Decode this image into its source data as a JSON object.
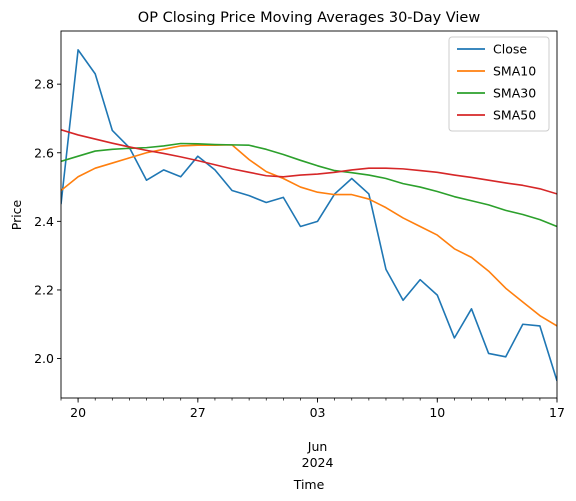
{
  "chart_data": {
    "type": "line",
    "title": "OP Closing Price Moving Averages 30-Day View",
    "xlabel": "Time",
    "ylabel": "Price",
    "ylim": [
      1.885,
      2.955
    ],
    "x_start": "2024-05-19",
    "x_end": "2024-06-17",
    "yticks": [
      2.0,
      2.2,
      2.4,
      2.6,
      2.8
    ],
    "ytick_labels": [
      "2.0",
      "2.2",
      "2.4",
      "2.6",
      "2.8"
    ],
    "xticks_major": [
      {
        "date": "2024-05-20",
        "label": "20"
      },
      {
        "date": "2024-05-27",
        "label": "27"
      },
      {
        "date": "2024-06-03",
        "label": "03"
      },
      {
        "date": "2024-06-10",
        "label": "10"
      },
      {
        "date": "2024-06-17",
        "label": "17"
      }
    ],
    "x_month_label": {
      "date": "2024-06-03",
      "line1": "Jun",
      "line2": "2024"
    },
    "grid": false,
    "legend_placement": "top-right",
    "dates": [
      "2024-05-19",
      "2024-05-20",
      "2024-05-21",
      "2024-05-22",
      "2024-05-23",
      "2024-05-24",
      "2024-05-25",
      "2024-05-26",
      "2024-05-27",
      "2024-05-28",
      "2024-05-29",
      "2024-05-30",
      "2024-05-31",
      "2024-06-01",
      "2024-06-02",
      "2024-06-03",
      "2024-06-04",
      "2024-06-05",
      "2024-06-06",
      "2024-06-07",
      "2024-06-08",
      "2024-06-09",
      "2024-06-10",
      "2024-06-11",
      "2024-06-12",
      "2024-06-13",
      "2024-06-14",
      "2024-06-15",
      "2024-06-16",
      "2024-06-17"
    ],
    "series": [
      {
        "name": "Close",
        "color": "#1f77b4",
        "values": [
          2.45,
          2.9,
          2.83,
          2.665,
          2.615,
          2.52,
          2.55,
          2.53,
          2.59,
          2.55,
          2.49,
          2.475,
          2.455,
          2.47,
          2.385,
          2.4,
          2.48,
          2.525,
          2.48,
          2.26,
          2.17,
          2.23,
          2.185,
          2.06,
          2.145,
          2.015,
          2.005,
          2.1,
          2.095,
          1.935
        ]
      },
      {
        "name": "SMA10",
        "color": "#ff7f0e",
        "values": [
          2.49,
          2.53,
          2.555,
          2.57,
          2.585,
          2.6,
          2.61,
          2.62,
          2.622,
          2.622,
          2.623,
          2.58,
          2.545,
          2.525,
          2.5,
          2.485,
          2.478,
          2.478,
          2.465,
          2.44,
          2.41,
          2.385,
          2.36,
          2.32,
          2.295,
          2.255,
          2.205,
          2.165,
          2.125,
          2.095
        ]
      },
      {
        "name": "SMA30",
        "color": "#2ca02c",
        "values": [
          2.575,
          2.59,
          2.605,
          2.61,
          2.613,
          2.615,
          2.62,
          2.627,
          2.626,
          2.624,
          2.623,
          2.622,
          2.61,
          2.595,
          2.578,
          2.562,
          2.548,
          2.542,
          2.535,
          2.525,
          2.51,
          2.5,
          2.487,
          2.472,
          2.46,
          2.448,
          2.432,
          2.42,
          2.405,
          2.385
        ]
      },
      {
        "name": "SMA50",
        "color": "#d62728",
        "values": [
          2.667,
          2.652,
          2.64,
          2.628,
          2.617,
          2.607,
          2.598,
          2.588,
          2.577,
          2.565,
          2.553,
          2.543,
          2.533,
          2.53,
          2.535,
          2.538,
          2.543,
          2.55,
          2.555,
          2.555,
          2.553,
          2.548,
          2.543,
          2.535,
          2.528,
          2.52,
          2.512,
          2.505,
          2.495,
          2.48
        ]
      }
    ]
  }
}
